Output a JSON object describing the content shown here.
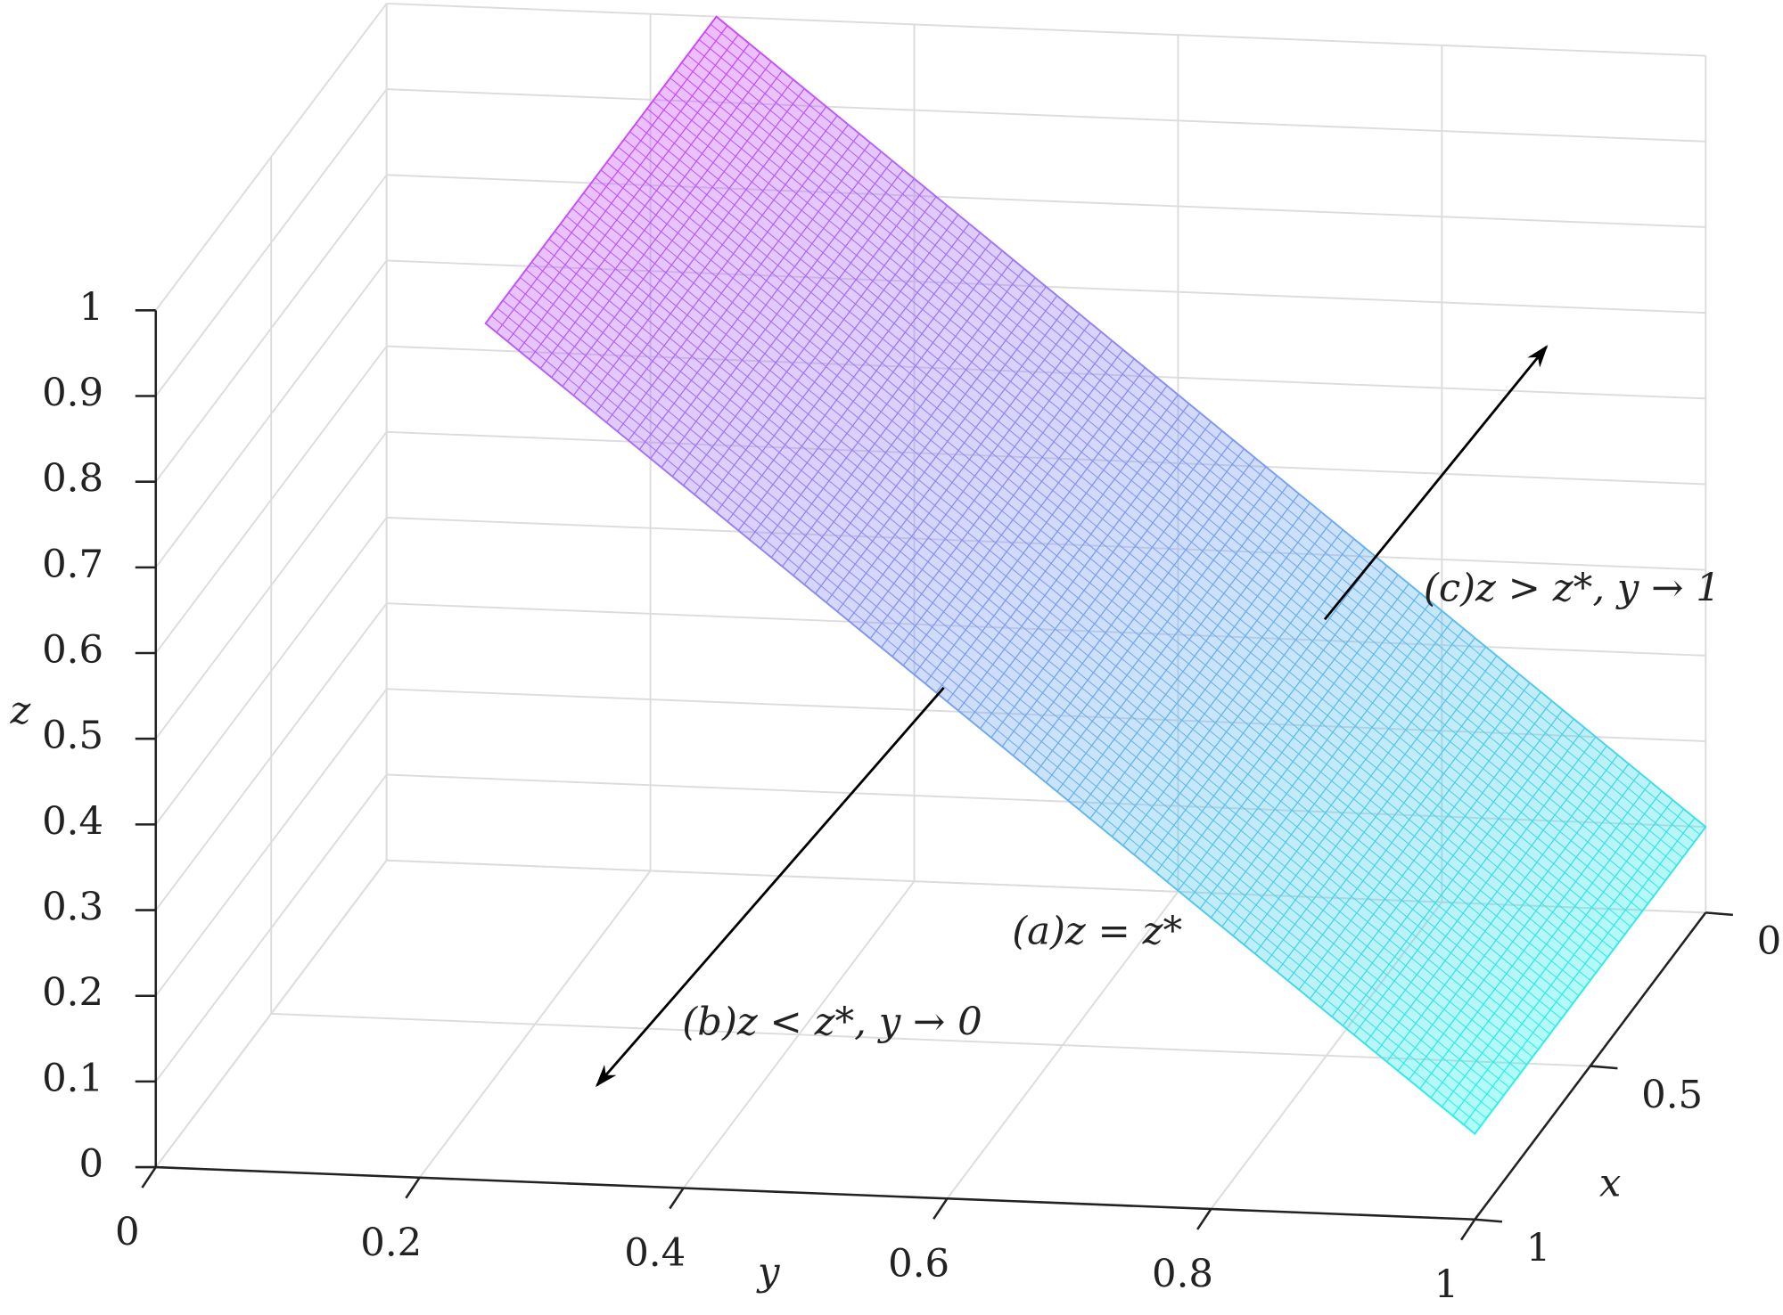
{
  "chart_data": {
    "type": "surface3d",
    "xlabel": "x",
    "ylabel": "y",
    "zlabel": "z",
    "xlim": [
      0,
      1
    ],
    "ylim": [
      0,
      1
    ],
    "zlim": [
      0,
      1
    ],
    "xticks": [
      0,
      0.5,
      1
    ],
    "yticks": [
      0,
      0.2,
      0.4,
      0.6,
      0.8,
      1
    ],
    "zticks": [
      0,
      0.1,
      0.2,
      0.3,
      0.4,
      0.5,
      0.6,
      0.7,
      0.8,
      0.9,
      1
    ],
    "grid": true,
    "surface": {
      "x": [
        0,
        1
      ],
      "y": [
        0.25,
        1
      ],
      "z": [
        [
          1,
          0.1
        ],
        [
          1,
          0.1
        ]
      ]
    },
    "colormap": [
      "#cc44ff",
      "#22f5e6"
    ],
    "annotations": [
      "(a)z = z*",
      "(b)z < z*, y → 0",
      "(c)z > z*, y → 1"
    ]
  }
}
